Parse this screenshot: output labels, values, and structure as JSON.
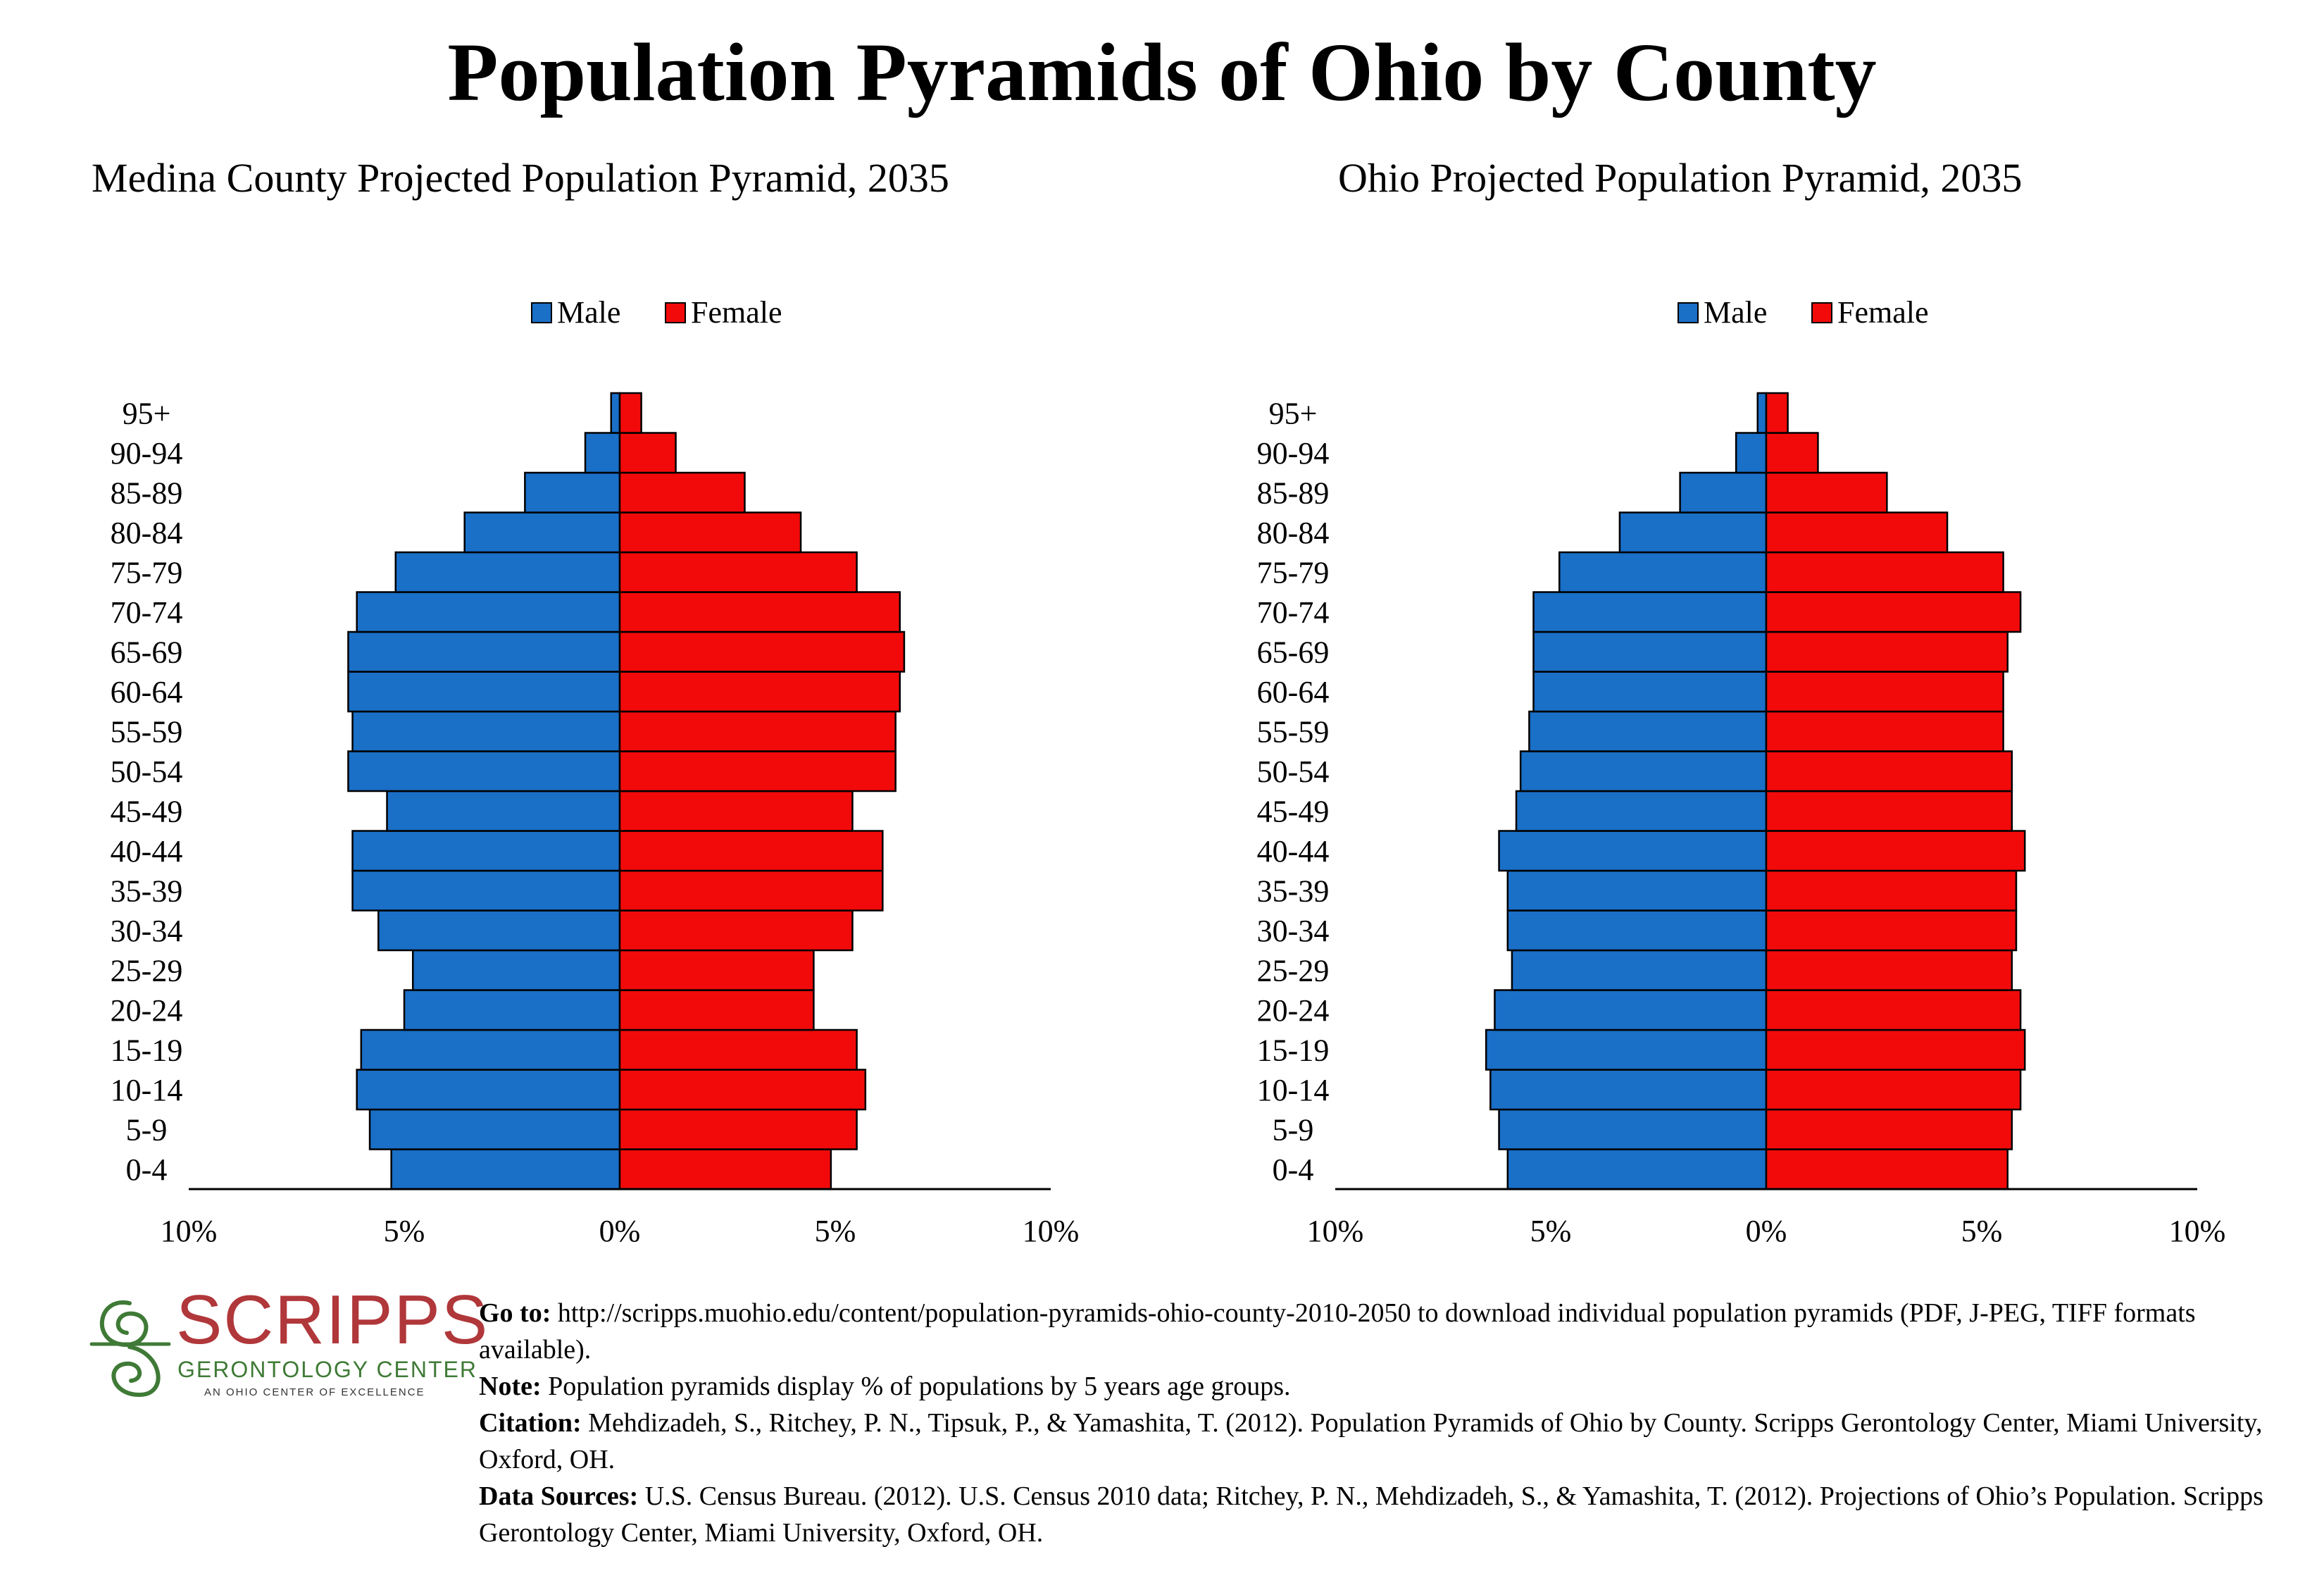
{
  "title": "Population Pyramids of Ohio by County",
  "logo": {
    "word": "SCRIPPS",
    "subtitle": "GERONTOLOGY CENTER",
    "tagline": "AN OHIO CENTER OF EXCELLENCE"
  },
  "notes": {
    "goto_label": "Go to:",
    "goto_text": "http://scripps.muohio.edu/content/population-pyramids-ohio-county-2010-2050 to download individual population pyramids (PDF, J-PEG, TIFF formats available).",
    "note_label": "Note:",
    "note_text": "Population pyramids display % of populations by 5 years age groups.",
    "citation_label": "Citation:",
    "citation_text": "Mehdizadeh, S., Ritchey, P. N., Tipsuk, P., & Yamashita, T. (2012). Population Pyramids of Ohio by County. Scripps Gerontology Center, Miami University, Oxford, OH.",
    "sources_label": "Data Sources:",
    "sources_text": "U.S. Census Bureau. (2012). U.S. Census 2010 data; Ritchey, P. N., Mehdizadeh, S., & Yamashita, T. (2012). Projections of Ohio’s Population. Scripps Gerontology Center, Miami University, Oxford, OH."
  },
  "colors": {
    "male": "#1a6fc7",
    "female": "#f20a0a"
  },
  "chart_data": [
    {
      "type": "bar",
      "orientation": "horizontal-pyramid",
      "title": "Medina County Projected Population Pyramid, 2035",
      "categories": [
        "0-4",
        "5-9",
        "10-14",
        "15-19",
        "20-24",
        "25-29",
        "30-34",
        "35-39",
        "40-44",
        "45-49",
        "50-54",
        "55-59",
        "60-64",
        "65-69",
        "70-74",
        "75-79",
        "80-84",
        "85-89",
        "90-94",
        "95+"
      ],
      "series": [
        {
          "name": "Male",
          "values": [
            5.3,
            5.8,
            6.1,
            6.0,
            5.0,
            4.8,
            5.6,
            6.2,
            6.2,
            5.4,
            6.3,
            6.2,
            6.3,
            6.3,
            6.1,
            5.2,
            3.6,
            2.2,
            0.8,
            0.2
          ]
        },
        {
          "name": "Female",
          "values": [
            4.9,
            5.5,
            5.7,
            5.5,
            4.5,
            4.5,
            5.4,
            6.1,
            6.1,
            5.4,
            6.4,
            6.4,
            6.5,
            6.6,
            6.5,
            5.5,
            4.2,
            2.9,
            1.3,
            0.5
          ]
        }
      ],
      "xlim": [
        -10,
        10
      ],
      "tick_labels": [
        "10%",
        "5%",
        "0%",
        "5%",
        "10%"
      ],
      "legend": "top-center"
    },
    {
      "type": "bar",
      "orientation": "horizontal-pyramid",
      "title": "Ohio Projected Population Pyramid, 2035",
      "categories": [
        "0-4",
        "5-9",
        "10-14",
        "15-19",
        "20-24",
        "25-29",
        "30-34",
        "35-39",
        "40-44",
        "45-49",
        "50-54",
        "55-59",
        "60-64",
        "65-69",
        "70-74",
        "75-79",
        "80-84",
        "85-89",
        "90-94",
        "95+"
      ],
      "series": [
        {
          "name": "Male",
          "values": [
            6.0,
            6.2,
            6.4,
            6.5,
            6.3,
            5.9,
            6.0,
            6.0,
            6.2,
            5.8,
            5.7,
            5.5,
            5.4,
            5.4,
            5.4,
            4.8,
            3.4,
            2.0,
            0.7,
            0.2
          ]
        },
        {
          "name": "Female",
          "values": [
            5.6,
            5.7,
            5.9,
            6.0,
            5.9,
            5.7,
            5.8,
            5.8,
            6.0,
            5.7,
            5.7,
            5.5,
            5.5,
            5.6,
            5.9,
            5.5,
            4.2,
            2.8,
            1.2,
            0.5
          ]
        }
      ],
      "xlim": [
        -10,
        10
      ],
      "tick_labels": [
        "10%",
        "5%",
        "0%",
        "5%",
        "10%"
      ],
      "legend": "top-center"
    }
  ]
}
